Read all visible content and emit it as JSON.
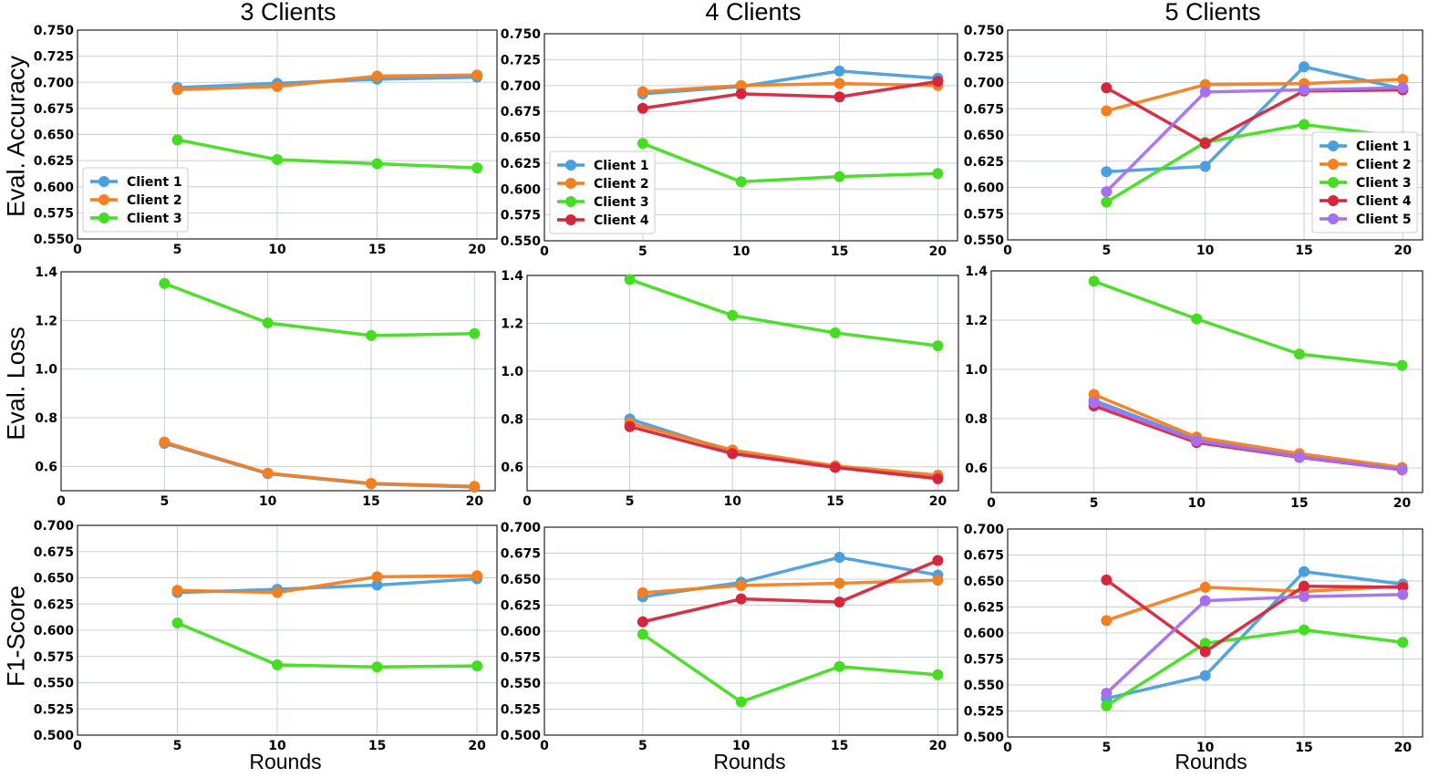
{
  "figure": {
    "column_titles": [
      "3 Clients",
      "4 Clients",
      "5 Clients"
    ],
    "row_labels": [
      "Eval. Accuracy",
      "Eval. Loss",
      "F1-Score"
    ],
    "x_axis_label": "Rounds",
    "series_colors": {
      "Client 1": "#4a9fdd",
      "Client 2": "#f47f21",
      "Client 3": "#44dd22",
      "Client 4": "#d6263d",
      "Client 5": "#a56ff0"
    }
  },
  "chart_data": [
    {
      "type": "line",
      "row": 0,
      "col": 0,
      "title": "3 Clients",
      "ylabel": "Eval. Accuracy",
      "xlabel": "",
      "x": [
        5,
        10,
        15,
        20
      ],
      "xlim": [
        0,
        21
      ],
      "xticks": [
        0,
        5,
        10,
        15,
        20
      ],
      "ylim": [
        0.55,
        0.75
      ],
      "yticks": [
        "0.550",
        "0.575",
        "0.600",
        "0.625",
        "0.650",
        "0.675",
        "0.700",
        "0.725",
        "0.750"
      ],
      "grid": true,
      "legend": "lower-left",
      "series": [
        {
          "name": "Client 1",
          "values": [
            0.695,
            0.699,
            0.703,
            0.705
          ]
        },
        {
          "name": "Client 2",
          "values": [
            0.693,
            0.696,
            0.706,
            0.707
          ]
        },
        {
          "name": "Client 3",
          "values": [
            0.645,
            0.626,
            0.622,
            0.618
          ]
        }
      ]
    },
    {
      "type": "line",
      "row": 0,
      "col": 1,
      "title": "4 Clients",
      "ylabel": "",
      "xlabel": "",
      "x": [
        5,
        10,
        15,
        20
      ],
      "xlim": [
        0,
        21
      ],
      "xticks": [
        0,
        5,
        10,
        15,
        20
      ],
      "ylim": [
        0.55,
        0.75
      ],
      "yticks": [
        "0.550",
        "0.575",
        "0.600",
        "0.625",
        "0.650",
        "0.675",
        "0.700",
        "0.725",
        "0.750"
      ],
      "grid": true,
      "legend": "lower-left",
      "series": [
        {
          "name": "Client 1",
          "values": [
            0.692,
            0.699,
            0.714,
            0.707
          ]
        },
        {
          "name": "Client 2",
          "values": [
            0.694,
            0.7,
            0.702,
            0.7
          ]
        },
        {
          "name": "Client 3",
          "values": [
            0.644,
            0.607,
            0.612,
            0.615
          ]
        },
        {
          "name": "Client 4",
          "values": [
            0.678,
            0.692,
            0.689,
            0.704
          ]
        }
      ]
    },
    {
      "type": "line",
      "row": 0,
      "col": 2,
      "title": "5 Clients",
      "ylabel": "",
      "xlabel": "",
      "x": [
        5,
        10,
        15,
        20
      ],
      "xlim": [
        0,
        21
      ],
      "xticks": [
        0,
        5,
        10,
        15,
        20
      ],
      "ylim": [
        0.55,
        0.75
      ],
      "yticks": [
        "0.550",
        "0.575",
        "0.600",
        "0.625",
        "0.650",
        "0.675",
        "0.700",
        "0.725",
        "0.750"
      ],
      "grid": true,
      "legend": "lower-right",
      "series": [
        {
          "name": "Client 1",
          "values": [
            0.615,
            0.62,
            0.715,
            0.694
          ]
        },
        {
          "name": "Client 2",
          "values": [
            0.673,
            0.698,
            0.699,
            0.703
          ]
        },
        {
          "name": "Client 3",
          "values": [
            0.586,
            0.643,
            0.66,
            0.648
          ]
        },
        {
          "name": "Client 4",
          "values": [
            0.695,
            0.642,
            0.692,
            0.693
          ]
        },
        {
          "name": "Client 5",
          "values": [
            0.596,
            0.691,
            0.693,
            0.695
          ]
        }
      ]
    },
    {
      "type": "line",
      "row": 1,
      "col": 0,
      "title": "",
      "ylabel": "Eval. Loss",
      "xlabel": "",
      "x": [
        5,
        10,
        15,
        20
      ],
      "xlim": [
        0,
        21
      ],
      "xticks": [
        0,
        5,
        10,
        15,
        20
      ],
      "ylim": [
        0.5,
        1.4
      ],
      "yticks": [
        "0.6",
        "0.8",
        "1.0",
        "1.2",
        "1.4"
      ],
      "grid": true,
      "legend": "none",
      "series": [
        {
          "name": "Client 1",
          "values": [
            0.695,
            0.57,
            0.528,
            0.515
          ]
        },
        {
          "name": "Client 2",
          "values": [
            0.7,
            0.572,
            0.53,
            0.518
          ]
        },
        {
          "name": "Client 3",
          "values": [
            1.352,
            1.19,
            1.138,
            1.146
          ]
        }
      ]
    },
    {
      "type": "line",
      "row": 1,
      "col": 1,
      "title": "",
      "ylabel": "",
      "xlabel": "",
      "x": [
        5,
        10,
        15,
        20
      ],
      "xlim": [
        0,
        21
      ],
      "xticks": [
        0,
        5,
        10,
        15,
        20
      ],
      "ylim": [
        0.5,
        1.4
      ],
      "yticks": [
        "0.6",
        "0.8",
        "1.0",
        "1.2",
        "1.4"
      ],
      "grid": true,
      "legend": "none",
      "series": [
        {
          "name": "Client 1",
          "values": [
            0.8,
            0.663,
            0.6,
            0.558
          ]
        },
        {
          "name": "Client 2",
          "values": [
            0.783,
            0.67,
            0.604,
            0.565
          ]
        },
        {
          "name": "Client 3",
          "values": [
            1.383,
            1.233,
            1.16,
            1.106
          ]
        },
        {
          "name": "Client 4",
          "values": [
            0.768,
            0.655,
            0.597,
            0.55
          ]
        }
      ]
    },
    {
      "type": "line",
      "row": 1,
      "col": 2,
      "title": "",
      "ylabel": "",
      "xlabel": "",
      "x": [
        5,
        10,
        15,
        20
      ],
      "xlim": [
        0,
        21
      ],
      "xticks": [
        0,
        5,
        10,
        15,
        20
      ],
      "ylim": [
        0.5,
        1.4
      ],
      "yticks": [
        "0.6",
        "0.8",
        "1.0",
        "1.2",
        "1.4"
      ],
      "grid": true,
      "legend": "none",
      "series": [
        {
          "name": "Client 1",
          "values": [
            0.875,
            0.715,
            0.648,
            0.595
          ]
        },
        {
          "name": "Client 2",
          "values": [
            0.898,
            0.725,
            0.658,
            0.602
          ]
        },
        {
          "name": "Client 3",
          "values": [
            1.358,
            1.205,
            1.062,
            1.016
          ]
        },
        {
          "name": "Client 4",
          "values": [
            0.852,
            0.703,
            0.643,
            0.592
          ]
        },
        {
          "name": "Client 5",
          "values": [
            0.865,
            0.71,
            0.645,
            0.593
          ]
        }
      ]
    },
    {
      "type": "line",
      "row": 2,
      "col": 0,
      "title": "",
      "ylabel": "F1-Score",
      "xlabel": "Rounds",
      "x": [
        5,
        10,
        15,
        20
      ],
      "xlim": [
        0,
        21
      ],
      "xticks": [
        0,
        5,
        10,
        15,
        20
      ],
      "ylim": [
        0.5,
        0.7
      ],
      "yticks": [
        "0.500",
        "0.525",
        "0.550",
        "0.575",
        "0.600",
        "0.625",
        "0.650",
        "0.675",
        "0.700"
      ],
      "grid": true,
      "legend": "none",
      "series": [
        {
          "name": "Client 1",
          "values": [
            0.636,
            0.639,
            0.643,
            0.649
          ]
        },
        {
          "name": "Client 2",
          "values": [
            0.638,
            0.636,
            0.651,
            0.652
          ]
        },
        {
          "name": "Client 3",
          "values": [
            0.607,
            0.567,
            0.565,
            0.566
          ]
        }
      ]
    },
    {
      "type": "line",
      "row": 2,
      "col": 1,
      "title": "",
      "ylabel": "",
      "xlabel": "Rounds",
      "x": [
        5,
        10,
        15,
        20
      ],
      "xlim": [
        0,
        21
      ],
      "xticks": [
        0,
        5,
        10,
        15,
        20
      ],
      "ylim": [
        0.5,
        0.7
      ],
      "yticks": [
        "0.500",
        "0.525",
        "0.550",
        "0.575",
        "0.600",
        "0.625",
        "0.650",
        "0.675",
        "0.700"
      ],
      "grid": true,
      "legend": "none",
      "series": [
        {
          "name": "Client 1",
          "values": [
            0.633,
            0.647,
            0.671,
            0.654
          ]
        },
        {
          "name": "Client 2",
          "values": [
            0.637,
            0.644,
            0.646,
            0.649
          ]
        },
        {
          "name": "Client 3",
          "values": [
            0.597,
            0.532,
            0.566,
            0.558
          ]
        },
        {
          "name": "Client 4",
          "values": [
            0.609,
            0.631,
            0.628,
            0.668
          ]
        }
      ]
    },
    {
      "type": "line",
      "row": 2,
      "col": 2,
      "title": "",
      "ylabel": "",
      "xlabel": "Rounds",
      "x": [
        5,
        10,
        15,
        20
      ],
      "xlim": [
        0,
        21
      ],
      "xticks": [
        0,
        5,
        10,
        15,
        20
      ],
      "ylim": [
        0.5,
        0.7
      ],
      "yticks": [
        "0.500",
        "0.525",
        "0.550",
        "0.575",
        "0.600",
        "0.625",
        "0.650",
        "0.675",
        "0.700"
      ],
      "grid": true,
      "legend": "none",
      "series": [
        {
          "name": "Client 1",
          "values": [
            0.537,
            0.559,
            0.659,
            0.647
          ]
        },
        {
          "name": "Client 2",
          "values": [
            0.612,
            0.644,
            0.64,
            0.645
          ]
        },
        {
          "name": "Client 3",
          "values": [
            0.53,
            0.59,
            0.603,
            0.591
          ]
        },
        {
          "name": "Client 4",
          "values": [
            0.651,
            0.582,
            0.645,
            0.644
          ]
        },
        {
          "name": "Client 5",
          "values": [
            0.542,
            0.631,
            0.635,
            0.637
          ]
        }
      ]
    }
  ]
}
